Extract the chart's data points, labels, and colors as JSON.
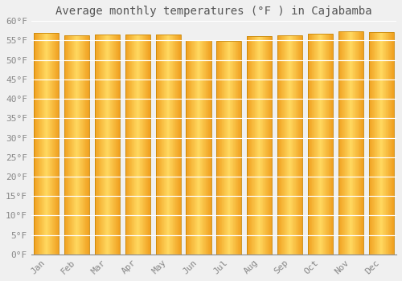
{
  "title": "Average monthly temperatures (°F ) in Cajabamba",
  "months": [
    "Jan",
    "Feb",
    "Mar",
    "Apr",
    "May",
    "Jun",
    "Jul",
    "Aug",
    "Sep",
    "Oct",
    "Nov",
    "Dec"
  ],
  "values": [
    57.0,
    56.3,
    56.5,
    56.5,
    56.5,
    55.2,
    54.9,
    56.1,
    56.3,
    56.8,
    57.4,
    57.2
  ],
  "bar_color_center": "#FFD060",
  "bar_color_edge": "#F0A020",
  "bar_edge_color": "#C8880A",
  "ylim": [
    0,
    60
  ],
  "yticks": [
    0,
    5,
    10,
    15,
    20,
    25,
    30,
    35,
    40,
    45,
    50,
    55,
    60
  ],
  "background_color": "#F0F0F0",
  "grid_color": "#FFFFFF",
  "title_fontsize": 10,
  "tick_fontsize": 8,
  "title_color": "#555555",
  "tick_color": "#888888"
}
